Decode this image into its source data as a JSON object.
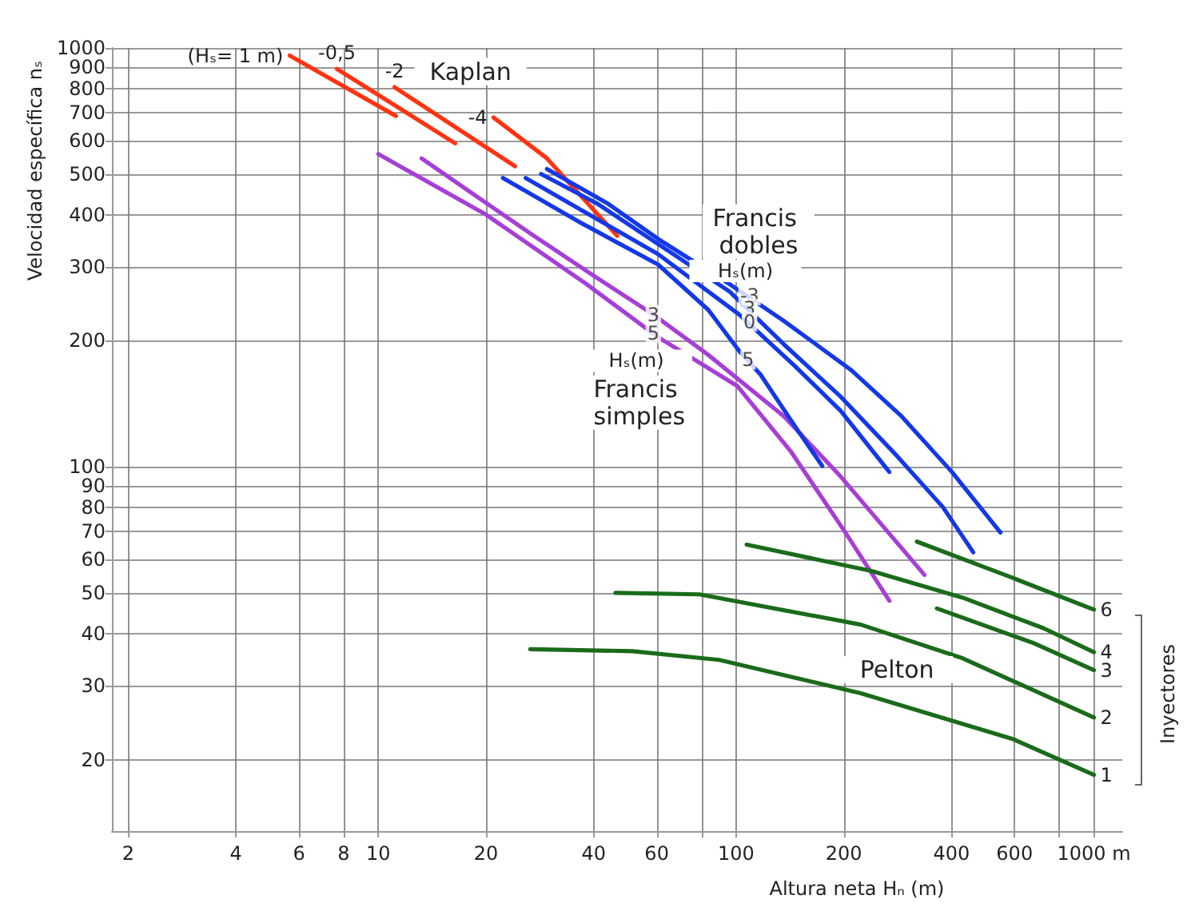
{
  "chart_data": {
    "type": "line",
    "xlabel": "Altura neta Hₙ (m)",
    "ylabel": "Velocidad específica nₛ",
    "log": "xy",
    "grid": true,
    "marker": "none",
    "line_style": "solid",
    "xlim": [
      1.8,
      1200
    ],
    "ylim": [
      13.5,
      1000
    ],
    "xticks": [
      2,
      4,
      6,
      8,
      10,
      20,
      40,
      60,
      {
        "value": 80,
        "label": null
      },
      100,
      200,
      400,
      600,
      {
        "value": 800,
        "label": null
      },
      {
        "value": 1000,
        "label": "1000 m"
      }
    ],
    "yticks": [
      20,
      30,
      40,
      50,
      60,
      70,
      80,
      90,
      100,
      200,
      300,
      400,
      500,
      600,
      700,
      800,
      900,
      1000
    ],
    "series": [
      {
        "name": "(Hₛ= 1 m)",
        "color": "#ff3311",
        "x": [
          5.65,
          11.2
        ],
        "values": [
          959,
          688
        ]
      },
      {
        "name": "-0,5",
        "color": "#ff3311",
        "x": [
          7.66,
          16.4
        ],
        "values": [
          891,
          592
        ]
      },
      {
        "name": "-2",
        "color": "#ff3311",
        "x": [
          11.1,
          24.1
        ],
        "values": [
          806,
          522
        ]
      },
      {
        "name": "-4",
        "color": "#ff3311",
        "x": [
          21.0,
          29.6,
          46.5
        ],
        "values": [
          682,
          545,
          356
        ]
      },
      {
        "color": "#a63fd6",
        "x": [
          10,
          20,
          38.2,
          60.5,
          100.7,
          142,
          202,
          268
        ],
        "values": [
          558,
          400,
          273,
          204,
          156,
          109,
          69.7,
          47.9
        ]
      },
      {
        "color": "#a63fd6",
        "x": [
          13.2,
          26.8,
          39.7,
          58.7,
          83.6,
          136,
          196,
          336
        ],
        "values": [
          545,
          359,
          287,
          231,
          185,
          132,
          94.8,
          55.2
        ]
      },
      {
        "color": "#1438e6",
        "x": [
          29.6,
          43.8,
          60.5,
          95.9,
          136,
          210,
          290,
          401,
          548
        ],
        "values": [
          514,
          425,
          350,
          273,
          223,
          170,
          132,
          97.2,
          69.7
        ]
      },
      {
        "color": "#1438e6",
        "x": [
          28.5,
          40.9,
          95.9,
          136,
          196,
          282,
          378,
          460
        ],
        "values": [
          500,
          425,
          262,
          196,
          147,
          106,
          80.2,
          62.5
        ]
      },
      {
        "color": "#1438e6",
        "x": [
          25.8,
          60.5,
          102,
          146,
          196,
          268
        ],
        "values": [
          489,
          322,
          231,
          174,
          136,
          97.2
        ]
      },
      {
        "color": "#1438e6",
        "x": [
          22.3,
          37.1,
          60.5,
          83.6,
          102,
          117,
          146,
          174
        ],
        "values": [
          489,
          381,
          304,
          237,
          189,
          166,
          125,
          100.5
        ]
      },
      {
        "name": "6",
        "color": "#1a6b1a",
        "x": [
          320,
          593,
          1000
        ],
        "values": [
          66.3,
          54.3,
          45.6
        ]
      },
      {
        "name": "4",
        "color": "#1a6b1a",
        "x": [
          107,
          239,
          430,
          722,
          1000
        ],
        "values": [
          65.2,
          56.4,
          48.7,
          41.2,
          36.1
        ]
      },
      {
        "name": "3",
        "color": "#1a6b1a",
        "x": [
          364,
          681,
          1000
        ],
        "values": [
          45.9,
          37.9,
          32.7
        ]
      },
      {
        "name": "2",
        "color": "#1a6b1a",
        "x": [
          46,
          78.9,
          223,
          430,
          1000
        ],
        "values": [
          50,
          49.6,
          42,
          34.9,
          25.2
        ]
      },
      {
        "name": "1",
        "color": "#1a6b1a",
        "x": [
          26.6,
          51.3,
          89.6,
          223,
          593,
          1000
        ],
        "values": [
          36.7,
          36.3,
          34.6,
          28.8,
          22.4,
          18.4
        ]
      }
    ],
    "annotations": [
      "Kaplan",
      "Francis dobles",
      "Hₛ(m)",
      "Hₛ(m)",
      "Francis simples",
      "Pelton",
      "Inyectores",
      {
        "text": "-3",
        "x": 109,
        "y": 256
      },
      {
        "text": "3",
        "x": 109,
        "y": 239
      },
      {
        "text": "0",
        "x": 109,
        "y": 222
      },
      {
        "text": "5",
        "x": 108,
        "y": 180
      },
      {
        "text": "3",
        "x": 58.7,
        "y": 231
      },
      {
        "text": "5",
        "x": 58.7,
        "y": 208
      }
    ]
  }
}
